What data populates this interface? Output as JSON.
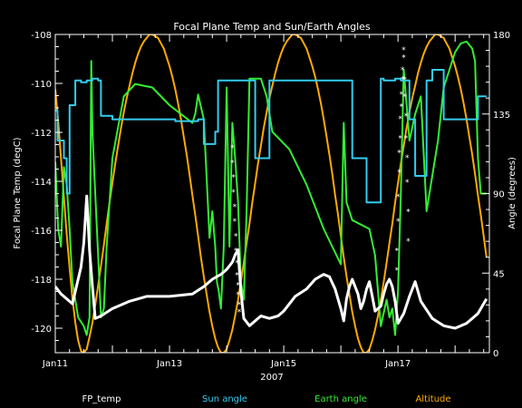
{
  "chart_data": {
    "type": "line",
    "title": "Focal Plane Temp and Sun/Earth Angles",
    "xlabel": "2007",
    "ylabel_left": "Focal Plane Temp (degC)",
    "ylabel_right": "Angle (degrees)",
    "x_range_days": [
      11.0,
      18.6
    ],
    "ylim_left": [
      -121,
      -108
    ],
    "ylim_right": [
      0,
      180
    ],
    "x_ticks": [
      "Jan11",
      "Jan13",
      "Jan15",
      "Jan17"
    ],
    "x_tick_days": [
      11,
      13,
      15,
      17
    ],
    "y_ticks_left": [
      "-120",
      "-118",
      "-116",
      "-114",
      "-112",
      "-110",
      "-108"
    ],
    "y_tick_values_left": [
      -120,
      -118,
      -116,
      -114,
      -112,
      -110,
      -108
    ],
    "y_ticks_right": [
      "0",
      "45",
      "90",
      "135",
      "180"
    ],
    "y_tick_values_right": [
      0,
      45,
      90,
      135,
      180
    ],
    "colors": {
      "fp": "#ffffff",
      "sun": "#33ccee",
      "earth": "#33ee33",
      "alt": "#ffaa00",
      "axis": "#ffffff",
      "background": "#000000"
    },
    "legend": [
      {
        "name": "FP_temp",
        "color": "#ffffff"
      },
      {
        "name": "Sun angle",
        "color": "#33ccee"
      },
      {
        "name": "Earth angle",
        "color": "#33ee33"
      },
      {
        "name": "Altitude",
        "color": "#ffaa00"
      }
    ],
    "series": [
      {
        "name": "FP_temp",
        "axis": "left",
        "style": "thick",
        "x": [
          11.0,
          11.1,
          11.3,
          11.45,
          11.5,
          11.55,
          11.6,
          11.65,
          11.7,
          11.8,
          12.0,
          12.3,
          12.6,
          13.0,
          13.4,
          13.6,
          13.75,
          13.9,
          14.0,
          14.1,
          14.15,
          14.2,
          14.25,
          14.3,
          14.4,
          14.5,
          14.6,
          14.75,
          14.9,
          15.0,
          15.2,
          15.4,
          15.55,
          15.7,
          15.8,
          15.9,
          16.0,
          16.05,
          16.1,
          16.15,
          16.2,
          16.3,
          16.35,
          16.4,
          16.45,
          16.5,
          16.55,
          16.6,
          16.7,
          16.75,
          16.8,
          16.85,
          16.9,
          16.95,
          17.0,
          17.1,
          17.2,
          17.3,
          17.4,
          17.6,
          17.8,
          18.0,
          18.2,
          18.4,
          18.55
        ],
        "y": [
          -118.3,
          -118.6,
          -119.0,
          -117.5,
          -116.5,
          -114.6,
          -116.8,
          -118.3,
          -119.6,
          -119.5,
          -119.2,
          -118.9,
          -118.7,
          -118.7,
          -118.6,
          -118.3,
          -118.0,
          -117.8,
          -117.6,
          -117.3,
          -117.0,
          -116.8,
          -118.5,
          -119.6,
          -119.9,
          -119.7,
          -119.5,
          -119.6,
          -119.5,
          -119.3,
          -118.7,
          -118.4,
          -118.0,
          -117.8,
          -117.9,
          -118.4,
          -119.2,
          -119.7,
          -118.8,
          -118.3,
          -118.0,
          -118.6,
          -119.2,
          -118.9,
          -118.4,
          -118.1,
          -118.7,
          -119.3,
          -119.1,
          -118.6,
          -118.2,
          -118.0,
          -118.3,
          -118.9,
          -119.8,
          -119.4,
          -118.7,
          -118.1,
          -118.9,
          -119.6,
          -119.9,
          -120.0,
          -119.8,
          -119.4,
          -118.8
        ]
      },
      {
        "name": "FP_temp",
        "axis": "left",
        "style": "asterisk",
        "x": [
          14.1,
          14.1,
          14.12,
          14.12,
          14.14,
          14.14,
          14.16,
          14.16,
          14.18,
          14.18,
          14.2,
          14.2,
          14.22,
          14.22,
          16.98,
          16.98,
          17.0,
          17.0,
          17.02,
          17.02,
          17.04,
          17.04,
          17.06,
          17.06,
          17.08,
          17.08,
          17.1,
          17.1,
          17.12,
          17.12,
          17.14,
          17.14,
          17.16,
          17.16,
          17.18,
          17.18
        ],
        "y": [
          -113.2,
          -112.6,
          -114.4,
          -113.8,
          -115.6,
          -115.0,
          -116.8,
          -116.2,
          -117.8,
          -117.3,
          -118.6,
          -118.2,
          -119.3,
          -119.0,
          -116.8,
          -117.6,
          -114.6,
          -115.6,
          -112.8,
          -113.6,
          -111.4,
          -112.2,
          -110.4,
          -110.9,
          -109.4,
          -109.8,
          -108.6,
          -108.9,
          -109.8,
          -110.5,
          -111.3,
          -112.2,
          -113.0,
          -114.0,
          -115.2,
          -116.4
        ]
      },
      {
        "name": "Sun angle",
        "axis": "right",
        "x": [
          11.0,
          11.04,
          11.04,
          11.15,
          11.15,
          11.2,
          11.2,
          11.25,
          11.25,
          11.35,
          11.35,
          11.45,
          11.45,
          11.55,
          11.55,
          11.65,
          11.65,
          11.75,
          11.75,
          11.8,
          11.8,
          12.0,
          12.0,
          13.1,
          13.1,
          13.5,
          13.5,
          13.6,
          13.6,
          13.8,
          13.8,
          13.85,
          13.85,
          14.5,
          14.5,
          14.75,
          14.75,
          16.2,
          16.2,
          16.45,
          16.45,
          16.7,
          16.7,
          16.75,
          16.75,
          16.95,
          16.95,
          17.05,
          17.05,
          17.2,
          17.2,
          17.3,
          17.3,
          17.5,
          17.5,
          17.6,
          17.6,
          17.8,
          17.8,
          18.4,
          18.4,
          18.55
        ],
        "y": [
          137,
          137,
          120,
          120,
          110,
          110,
          90,
          90,
          140,
          140,
          154,
          154,
          153,
          153,
          154,
          154,
          155,
          155,
          154,
          154,
          134,
          134,
          132,
          132,
          131,
          131,
          132,
          132,
          118,
          118,
          125,
          125,
          154,
          154,
          110,
          110,
          154,
          154,
          110,
          110,
          85,
          85,
          155,
          155,
          154,
          154,
          155,
          155,
          154,
          154,
          132,
          132,
          100,
          100,
          154,
          154,
          160,
          160,
          132,
          132,
          145,
          145
        ]
      },
      {
        "name": "Earth angle",
        "axis": "right",
        "x": [
          11.0,
          11.05,
          11.1,
          11.15,
          11.2,
          11.25,
          11.3,
          11.4,
          11.5,
          11.55,
          11.6,
          11.63,
          11.65,
          11.7,
          11.75,
          11.8,
          11.85,
          11.9,
          12.0,
          12.2,
          12.4,
          12.7,
          13.0,
          13.2,
          13.4,
          13.45,
          13.5,
          13.6,
          13.7,
          13.75,
          13.8,
          13.83,
          13.86,
          13.9,
          13.95,
          14.0,
          14.05,
          14.1,
          14.15,
          14.2,
          14.25,
          14.3,
          14.35,
          14.4,
          14.5,
          14.6,
          14.7,
          14.8,
          15.1,
          15.4,
          15.7,
          16.0,
          16.05,
          16.1,
          16.2,
          16.5,
          16.6,
          16.7,
          16.8,
          16.85,
          16.9,
          16.95,
          17.0,
          17.05,
          17.1,
          17.2,
          17.3,
          17.4,
          17.5,
          17.6,
          17.7,
          17.8,
          17.9,
          18.0,
          18.1,
          18.2,
          18.3,
          18.35,
          18.4,
          18.45,
          18.55
        ],
        "y": [
          108,
          70,
          60,
          105,
          95,
          70,
          40,
          20,
          15,
          10,
          20,
          165,
          125,
          90,
          55,
          20,
          25,
          60,
          110,
          145,
          152,
          150,
          140,
          135,
          130,
          135,
          146,
          132,
          65,
          80,
          60,
          40,
          35,
          25,
          60,
          150,
          60,
          130,
          110,
          85,
          40,
          30,
          80,
          155,
          155,
          155,
          145,
          125,
          115,
          95,
          70,
          50,
          130,
          85,
          75,
          70,
          55,
          15,
          30,
          20,
          25,
          10,
          35,
          90,
          160,
          120,
          135,
          145,
          80,
          100,
          120,
          150,
          160,
          170,
          175,
          176,
          172,
          165,
          110,
          90,
          90
        ]
      },
      {
        "name": "Altitude",
        "axis": "right",
        "x": [
          11.0,
          11.05,
          11.1,
          11.15,
          11.2,
          11.25,
          11.3,
          11.35,
          11.4,
          11.45,
          11.5,
          11.55,
          11.6,
          11.65,
          11.7,
          11.75,
          11.8,
          11.85,
          11.9,
          11.95,
          12.0,
          12.05,
          12.1,
          12.15,
          12.2,
          12.25,
          12.3,
          12.35,
          12.4,
          12.45,
          12.5,
          12.55,
          12.6,
          12.65,
          12.7,
          12.75,
          12.8,
          12.85,
          12.9,
          12.95,
          13.0,
          13.05,
          13.1,
          13.15,
          13.2,
          13.25,
          13.3,
          13.35,
          13.4,
          13.45,
          13.5,
          13.55,
          13.6,
          13.65,
          13.7,
          13.75,
          13.8,
          13.85,
          13.9,
          13.95,
          14.0,
          14.05,
          14.1,
          14.15,
          14.2,
          14.25,
          14.3,
          14.35,
          14.4,
          14.45,
          14.5,
          14.55,
          14.6,
          14.65,
          14.7,
          14.75,
          14.8,
          14.85,
          14.9,
          14.95,
          15.0,
          15.05,
          15.1,
          15.15,
          15.2,
          15.25,
          15.3,
          15.35,
          15.4,
          15.45,
          15.5,
          15.55,
          15.6,
          15.65,
          15.7,
          15.75,
          15.8,
          15.85,
          15.9,
          15.95,
          16.0,
          16.05,
          16.1,
          16.15,
          16.2,
          16.25,
          16.3,
          16.35,
          16.4,
          16.45,
          16.5,
          16.55,
          16.6,
          16.65,
          16.7,
          16.75,
          16.8,
          16.85,
          16.9,
          16.95,
          17.0,
          17.05,
          17.1,
          17.15,
          17.2,
          17.25,
          17.3,
          17.35,
          17.4,
          17.45,
          17.5,
          17.55,
          17.6,
          17.65,
          17.7,
          17.75,
          17.8,
          17.85,
          17.9,
          17.95,
          18.0,
          18.05,
          18.1,
          18.15,
          18.2,
          18.25,
          18.3,
          18.35,
          18.4,
          18.45,
          18.5,
          18.55
        ],
        "y": [
          149,
          131,
          110,
          88,
          67,
          48,
          31,
          17,
          7,
          1,
          0,
          2,
          9,
          17,
          27,
          38,
          49,
          61,
          73,
          85,
          96,
          107,
          117,
          127,
          136,
          144,
          151,
          158,
          164,
          169,
          173,
          176,
          178,
          180,
          180,
          179,
          178,
          175,
          172,
          167,
          162,
          156,
          149,
          141,
          132,
          122,
          112,
          101,
          89,
          78,
          66,
          54,
          43,
          33,
          23,
          15,
          8,
          3,
          0,
          0,
          2,
          7,
          13,
          21,
          30,
          40,
          51,
          62,
          73,
          85,
          96,
          107,
          117,
          127,
          136,
          144,
          151,
          158,
          164,
          169,
          173,
          176,
          178,
          180,
          180,
          179,
          178,
          175,
          172,
          167,
          162,
          156,
          149,
          141,
          132,
          122,
          112,
          101,
          89,
          78,
          66,
          54,
          43,
          33,
          23,
          15,
          8,
          3,
          0,
          0,
          2,
          7,
          13,
          21,
          30,
          40,
          51,
          62,
          73,
          85,
          96,
          107,
          117,
          127,
          136,
          144,
          151,
          158,
          164,
          169,
          173,
          176,
          178,
          180,
          180,
          179,
          178,
          175,
          172,
          167,
          162,
          156,
          149,
          141,
          132,
          122,
          112,
          101,
          89,
          78,
          66,
          54
        ]
      }
    ]
  }
}
